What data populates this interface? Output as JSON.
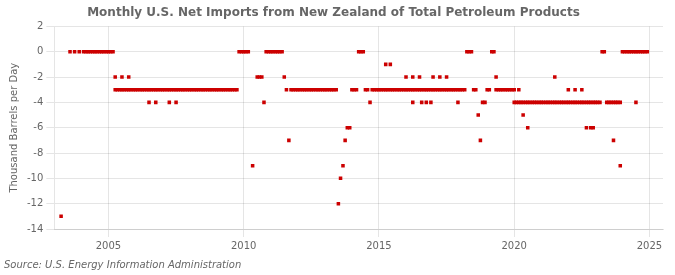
{
  "chart_data": {
    "type": "scatter",
    "title": "Monthly U.S. Net Imports from New Zealand of Total Petroleum Products",
    "ylabel": "Thousand Barrels per Day",
    "annotations": [
      "Source: U.S. Energy Information Administration"
    ],
    "color": "#cc0000",
    "marker": "square",
    "grid": true,
    "xlim": [
      2003.0,
      2025.5
    ],
    "xticks": [
      2005,
      2010,
      2015,
      2020,
      2025
    ],
    "ylim": [
      -14,
      2
    ],
    "yticks": [
      2,
      0,
      -2,
      -4,
      -6,
      -8,
      -10,
      -12,
      -14
    ],
    "x": [
      2003.25,
      2003.58,
      2003.75,
      2003.92,
      2004.08,
      2004.17,
      2004.25,
      2004.33,
      2004.42,
      2004.5,
      2004.58,
      2004.67,
      2004.75,
      2004.83,
      2004.92,
      2005.0,
      2005.08,
      2005.17,
      2005.25,
      2005.33,
      2005.42,
      2005.5,
      2005.58,
      2005.67,
      2005.75,
      2005.83,
      2005.92,
      2005.25,
      2005.5,
      2005.75,
      2006.0,
      2006.08,
      2006.17,
      2006.25,
      2006.33,
      2006.42,
      2006.5,
      2006.58,
      2006.67,
      2006.75,
      2006.83,
      2006.92,
      2006.5,
      2006.75,
      2007.0,
      2007.08,
      2007.17,
      2007.25,
      2007.33,
      2007.42,
      2007.5,
      2007.58,
      2007.67,
      2007.75,
      2007.83,
      2007.92,
      2007.25,
      2007.5,
      2008.0,
      2008.08,
      2008.17,
      2008.25,
      2008.33,
      2008.42,
      2008.5,
      2008.58,
      2008.67,
      2008.75,
      2008.83,
      2008.92,
      2009.0,
      2009.08,
      2009.17,
      2009.25,
      2009.33,
      2009.42,
      2009.5,
      2009.58,
      2009.67,
      2009.75,
      2009.83,
      2009.92,
      2010.0,
      2010.08,
      2010.17,
      2010.33,
      2010.5,
      2010.58,
      2010.67,
      2010.75,
      2010.83,
      2010.92,
      2011.0,
      2011.08,
      2011.17,
      2011.25,
      2011.33,
      2011.42,
      2011.5,
      2011.58,
      2011.67,
      2011.75,
      2011.83,
      2011.92,
      2012.0,
      2012.08,
      2012.17,
      2012.25,
      2012.33,
      2012.42,
      2012.5,
      2012.58,
      2012.67,
      2012.75,
      2012.83,
      2012.92,
      2013.0,
      2013.08,
      2013.17,
      2013.25,
      2013.33,
      2013.42,
      2013.5,
      2013.58,
      2013.67,
      2013.75,
      2013.83,
      2013.92,
      2014.0,
      2014.08,
      2014.17,
      2014.25,
      2014.33,
      2014.42,
      2014.5,
      2014.58,
      2014.67,
      2014.75,
      2014.83,
      2014.92,
      2015.0,
      2015.08,
      2015.17,
      2015.25,
      2015.33,
      2015.42,
      2015.5,
      2015.58,
      2015.67,
      2015.75,
      2015.83,
      2015.92,
      2015.25,
      2015.42,
      2016.0,
      2016.08,
      2016.17,
      2016.25,
      2016.33,
      2016.42,
      2016.5,
      2016.58,
      2016.67,
      2016.75,
      2016.83,
      2016.92,
      2016.0,
      2016.25,
      2016.5,
      2016.25,
      2016.58,
      2016.75,
      2016.92,
      2017.0,
      2017.08,
      2017.17,
      2017.25,
      2017.33,
      2017.42,
      2017.5,
      2017.58,
      2017.67,
      2017.75,
      2017.83,
      2017.92,
      2017.0,
      2017.25,
      2017.5,
      2017.92,
      2018.0,
      2018.08,
      2018.17,
      2018.25,
      2018.33,
      2018.42,
      2018.5,
      2018.58,
      2018.67,
      2018.75,
      2018.83,
      2018.92,
      2019.0,
      2019.08,
      2019.17,
      2019.25,
      2019.33,
      2019.42,
      2019.5,
      2019.58,
      2019.67,
      2019.75,
      2019.83,
      2019.92,
      2019.33,
      2020.0,
      2020.08,
      2020.17,
      2020.25,
      2020.33,
      2020.42,
      2020.5,
      2020.58,
      2020.67,
      2020.75,
      2020.83,
      2020.92,
      2020.33,
      2020.5,
      2020.0,
      2020.17,
      2021.0,
      2021.08,
      2021.17,
      2021.25,
      2021.33,
      2021.42,
      2021.5,
      2021.58,
      2021.67,
      2021.75,
      2021.83,
      2021.92,
      2021.5,
      2022.0,
      2022.08,
      2022.17,
      2022.25,
      2022.33,
      2022.42,
      2022.5,
      2022.58,
      2022.67,
      2022.75,
      2022.83,
      2022.92,
      2022.0,
      2022.25,
      2022.5,
      2022.67,
      2022.83,
      2022.92,
      2023.0,
      2023.08,
      2023.17,
      2023.25,
      2023.33,
      2023.42,
      2023.5,
      2023.58,
      2023.67,
      2023.75,
      2023.83,
      2023.92,
      2023.67,
      2023.92,
      2024.0,
      2024.08,
      2024.17,
      2024.25,
      2024.33,
      2024.42,
      2024.5,
      2024.58,
      2024.67,
      2024.75,
      2024.83,
      2024.92,
      2024.5
    ],
    "values": [
      -13.0,
      0,
      0,
      0,
      0,
      0,
      0,
      0,
      0,
      0,
      0,
      0,
      0,
      0,
      0,
      0,
      0,
      0,
      -3,
      -3,
      -3,
      -3,
      -3,
      -3,
      -3,
      -3,
      -3,
      -2,
      -2,
      -2,
      -3,
      -3,
      -3,
      -3,
      -3,
      -3,
      -3,
      -3,
      -3,
      -3,
      -3,
      -3,
      -4,
      -4,
      -3,
      -3,
      -3,
      -3,
      -3,
      -3,
      -3,
      -3,
      -3,
      -3,
      -3,
      -3,
      -4,
      -4,
      -3,
      -3,
      -3,
      -3,
      -3,
      -3,
      -3,
      -3,
      -3,
      -3,
      -3,
      -3,
      -3,
      -3,
      -3,
      -3,
      -3,
      -3,
      -3,
      -3,
      -3,
      -3,
      0,
      0,
      0,
      0,
      0,
      -9,
      -2,
      -2,
      -2,
      -4,
      0,
      0,
      0,
      0,
      0,
      0,
      0,
      0,
      -2,
      -3,
      -7,
      -3,
      -3,
      -3,
      -3,
      -3,
      -3,
      -3,
      -3,
      -3,
      -3,
      -3,
      -3,
      -3,
      -3,
      -3,
      -3,
      -3,
      -3,
      -3,
      -3,
      -3,
      -12,
      -10,
      -9,
      -7,
      -6,
      -6,
      -3,
      -3,
      -3,
      0,
      0,
      0,
      -3,
      -3,
      -4,
      -3,
      -3,
      -3,
      -3,
      -3,
      -3,
      -3,
      -3,
      -3,
      -3,
      -3,
      -3,
      -3,
      -3,
      -3,
      -1,
      -1,
      -3,
      -3,
      -3,
      -3,
      -3,
      -3,
      -3,
      -3,
      -3,
      -3,
      -3,
      -3,
      -2,
      -2,
      -2,
      -4,
      -4,
      -4,
      -4,
      -3,
      -3,
      -3,
      -3,
      -3,
      -3,
      -3,
      -3,
      -3,
      -3,
      -3,
      -3,
      -2,
      -2,
      -2,
      -4,
      -3,
      -3,
      -3,
      0,
      0,
      0,
      -3,
      -3,
      -5,
      -7,
      -4,
      -4,
      -3,
      -3,
      0,
      0,
      -3,
      -3,
      -3,
      -3,
      -3,
      -3,
      -3,
      -3,
      -2,
      -4,
      -4,
      -4,
      -4,
      -4,
      -4,
      -4,
      -4,
      -4,
      -4,
      -4,
      -4,
      -5,
      -6,
      -3,
      -3,
      -4,
      -4,
      -4,
      -4,
      -4,
      -4,
      -4,
      -4,
      -4,
      -4,
      -4,
      -4,
      -2,
      -4,
      -4,
      -4,
      -4,
      -4,
      -4,
      -4,
      -4,
      -4,
      -4,
      -4,
      -4,
      -3,
      -3,
      -3,
      -6,
      -6,
      -6,
      -4,
      -4,
      -4,
      0,
      0,
      -4,
      -4,
      -4,
      -4,
      -4,
      -4,
      -4,
      -7,
      -9,
      0,
      0,
      0,
      0,
      0,
      0,
      0,
      0,
      0,
      0,
      0,
      0,
      -4
    ]
  }
}
